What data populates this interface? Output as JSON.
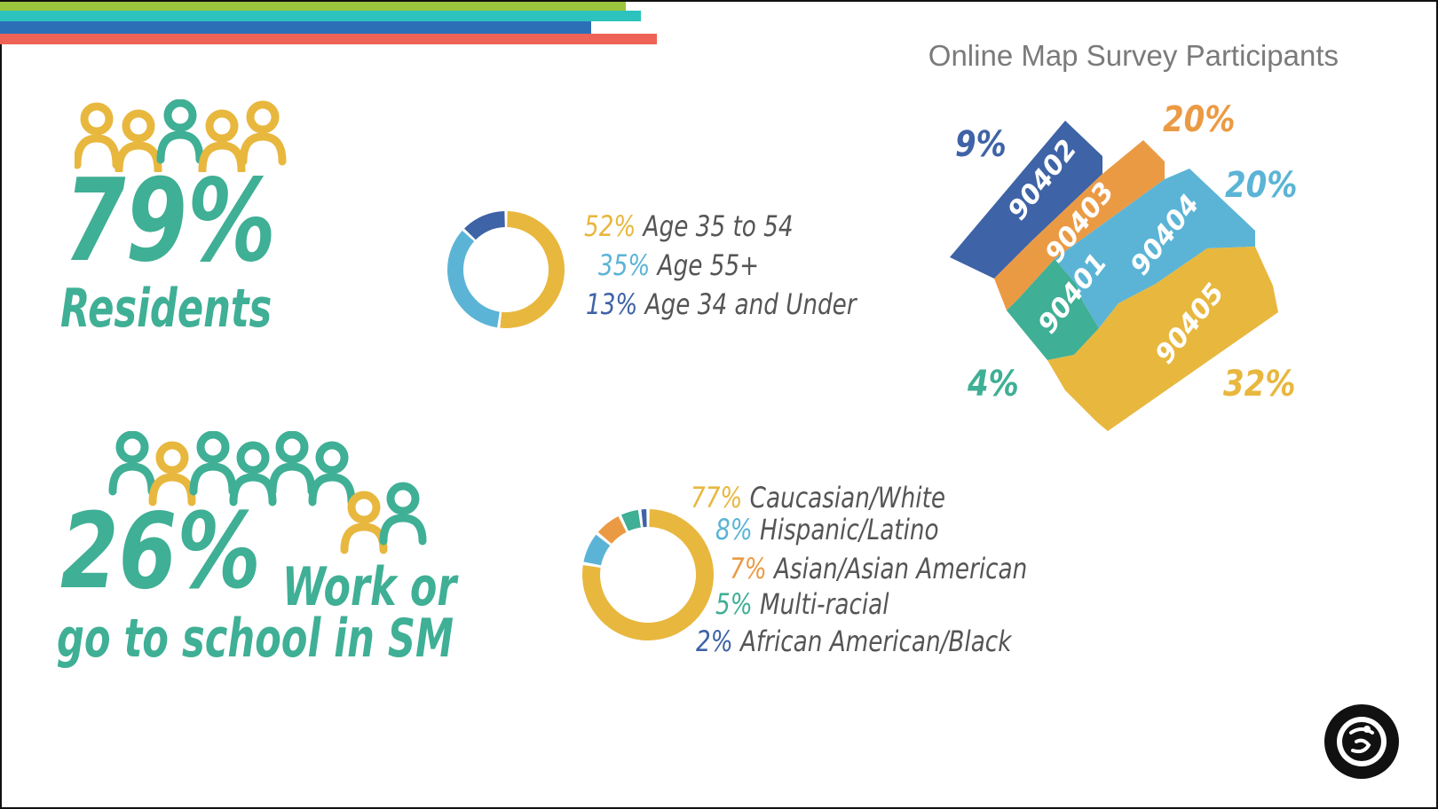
{
  "title": "Online Map Survey Participants",
  "colors": {
    "yellow": "#E8B73E",
    "teal": "#3FAF95",
    "light_blue": "#5BB4D6",
    "dark_blue": "#3E63A6",
    "orange": "#EB9A44",
    "stripe_green": "#9BC53D",
    "stripe_teal": "#2CC3BE",
    "stripe_blue": "#2D6FB7",
    "stripe_red": "#EE6355"
  },
  "residents": {
    "value": "79%",
    "label": "Residents",
    "icon": "people-group-icon"
  },
  "work_school": {
    "value": "26%",
    "label_line1": "Work or",
    "label_line2": "go to school in SM",
    "icon": "people-group-icon"
  },
  "age_legend": [
    {
      "pct": "52%",
      "label": "Age 35 to 54",
      "color": "#E8B73E"
    },
    {
      "pct": "35%",
      "label": "Age 55+",
      "color": "#5BB4D6"
    },
    {
      "pct": "13%",
      "label": "Age 34 and Under",
      "color": "#3E63A6"
    }
  ],
  "ethnicity_legend": [
    {
      "pct": "77%",
      "label": "Caucasian/White",
      "color": "#E8B73E"
    },
    {
      "pct": "8%",
      "label": "Hispanic/Latino",
      "color": "#5BB4D6"
    },
    {
      "pct": "7%",
      "label": "Asian/Asian American",
      "color": "#EB9A44"
    },
    {
      "pct": "5%",
      "label": "Multi-racial",
      "color": "#3FAF95"
    },
    {
      "pct": "2%",
      "label": "African American/Black",
      "color": "#3E63A6"
    }
  ],
  "chart_data": [
    {
      "type": "pie",
      "donut": true,
      "categories": [
        "Age 35 to 54",
        "Age 55+",
        "Age 34 and Under"
      ],
      "values": [
        52,
        35,
        13
      ],
      "colors": [
        "#E8B73E",
        "#5BB4D6",
        "#3E63A6"
      ]
    },
    {
      "type": "pie",
      "donut": true,
      "categories": [
        "Caucasian/White",
        "Hispanic/Latino",
        "Asian/Asian American",
        "Multi-racial",
        "African American/Black"
      ],
      "values": [
        77,
        8,
        7,
        5,
        2
      ],
      "colors": [
        "#E8B73E",
        "#5BB4D6",
        "#EB9A44",
        "#3FAF95",
        "#3E63A6"
      ]
    }
  ],
  "zip_map": {
    "zones": [
      {
        "zip": "90402",
        "pct": "9%",
        "color": "#3E63A6"
      },
      {
        "zip": "90403",
        "pct": "20%",
        "color": "#EB9A44"
      },
      {
        "zip": "90404",
        "pct": "20%",
        "color": "#5BB4D6"
      },
      {
        "zip": "90401",
        "pct": "4%",
        "color": "#3FAF95"
      },
      {
        "zip": "90405",
        "pct": "32%",
        "color": "#E8B73E"
      }
    ]
  },
  "logo": {
    "icon": "city-seal-icon"
  }
}
